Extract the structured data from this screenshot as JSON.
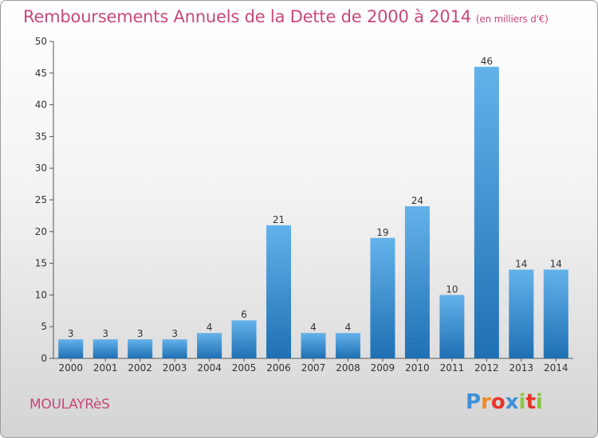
{
  "title": "Remboursements Annuels de la Dette de 2000 à 2014",
  "unit_note": "(en milliers d'€)",
  "commune": "MOULAYRèS",
  "logo": {
    "text": "Proxiti",
    "colors": [
      "#3f8fd8",
      "#f08a24",
      "#e8342b",
      "#3f8fd8",
      "#8cc63f",
      "#e8342b",
      "#8cc63f"
    ]
  },
  "colors": {
    "accent": "#c8487a",
    "bar_light": "#64b2ea",
    "bar_dark": "#1e70b4"
  },
  "chart_data": {
    "type": "bar",
    "title": "Remboursements Annuels de la Dette de 2000 à 2014",
    "categories": [
      "2000",
      "2001",
      "2002",
      "2003",
      "2004",
      "2005",
      "2006",
      "2007",
      "2008",
      "2009",
      "2010",
      "2011",
      "2012",
      "2013",
      "2014"
    ],
    "values": [
      3,
      3,
      3,
      3,
      4,
      6,
      21,
      4,
      4,
      19,
      24,
      10,
      46,
      14,
      14
    ],
    "ylim": [
      0,
      50
    ],
    "yticks": [
      0,
      5,
      10,
      15,
      20,
      25,
      30,
      35,
      40,
      45,
      50
    ],
    "grid": false,
    "data_labels": true
  }
}
